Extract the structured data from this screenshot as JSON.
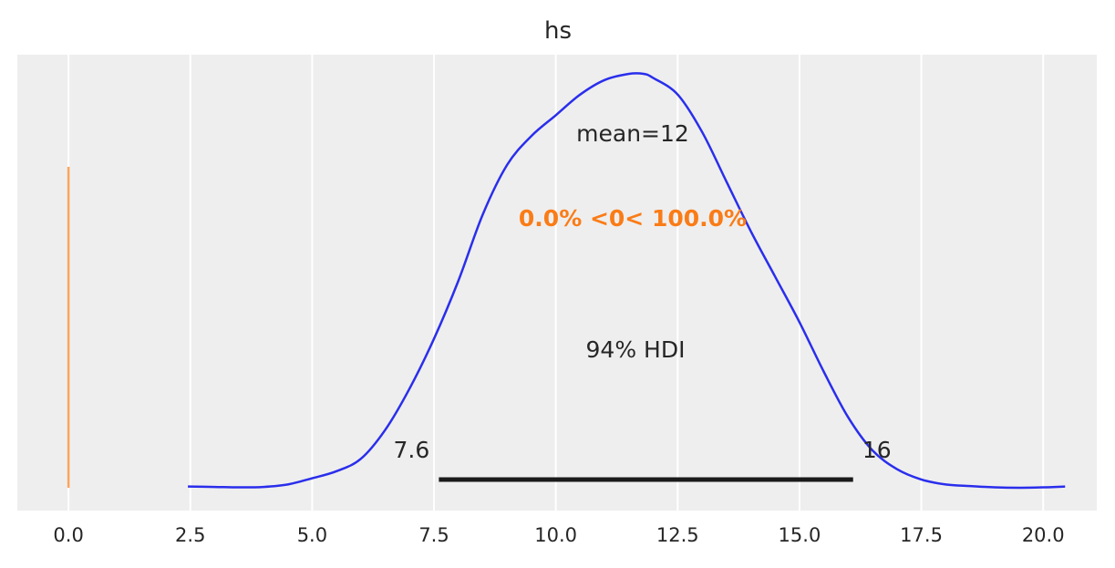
{
  "chart_data": {
    "type": "area",
    "title": "hs",
    "xlabel": "",
    "ylabel": "",
    "xlim": [
      -1.05,
      21.1
    ],
    "x_ticks": [
      0.0,
      2.5,
      5.0,
      7.5,
      10.0,
      12.5,
      15.0,
      17.5,
      20.0
    ],
    "x_tick_labels": [
      "0.0",
      "2.5",
      "5.0",
      "7.5",
      "10.0",
      "12.5",
      "15.0",
      "17.5",
      "20.0"
    ],
    "grid": true,
    "series": [
      {
        "kind": "kde",
        "color": "#2a2eec",
        "x": [
          2.45,
          3.0,
          3.5,
          4.0,
          4.5,
          5.0,
          5.5,
          6.0,
          6.5,
          7.0,
          7.5,
          8.0,
          8.5,
          9.0,
          9.5,
          10.0,
          10.5,
          11.0,
          11.5,
          11.8,
          12.0,
          12.5,
          13.0,
          13.5,
          14.0,
          14.5,
          15.0,
          15.5,
          16.0,
          16.5,
          17.0,
          17.5,
          18.0,
          18.5,
          19.0,
          19.5,
          20.0,
          20.45
        ],
        "density": [
          0.003,
          0.002,
          0.001,
          0.002,
          0.008,
          0.023,
          0.04,
          0.07,
          0.14,
          0.24,
          0.36,
          0.5,
          0.66,
          0.78,
          0.85,
          0.9,
          0.95,
          0.985,
          1.0,
          1.0,
          0.99,
          0.95,
          0.86,
          0.74,
          0.62,
          0.51,
          0.4,
          0.28,
          0.17,
          0.09,
          0.045,
          0.02,
          0.008,
          0.004,
          0.001,
          0.0,
          0.001,
          0.003
        ]
      }
    ],
    "point_estimate": {
      "label": "mean=12",
      "value": 12
    },
    "hdi": {
      "label": "94% HDI",
      "low": 7.6,
      "high": 16.1,
      "low_label": "7.6",
      "high_label": "16",
      "color": "#1a1a1a"
    },
    "reference": {
      "value": 0,
      "label": "0.0% <0< 100.0%",
      "color_line": "#fca45c",
      "color_text": "#fa7c17"
    }
  }
}
